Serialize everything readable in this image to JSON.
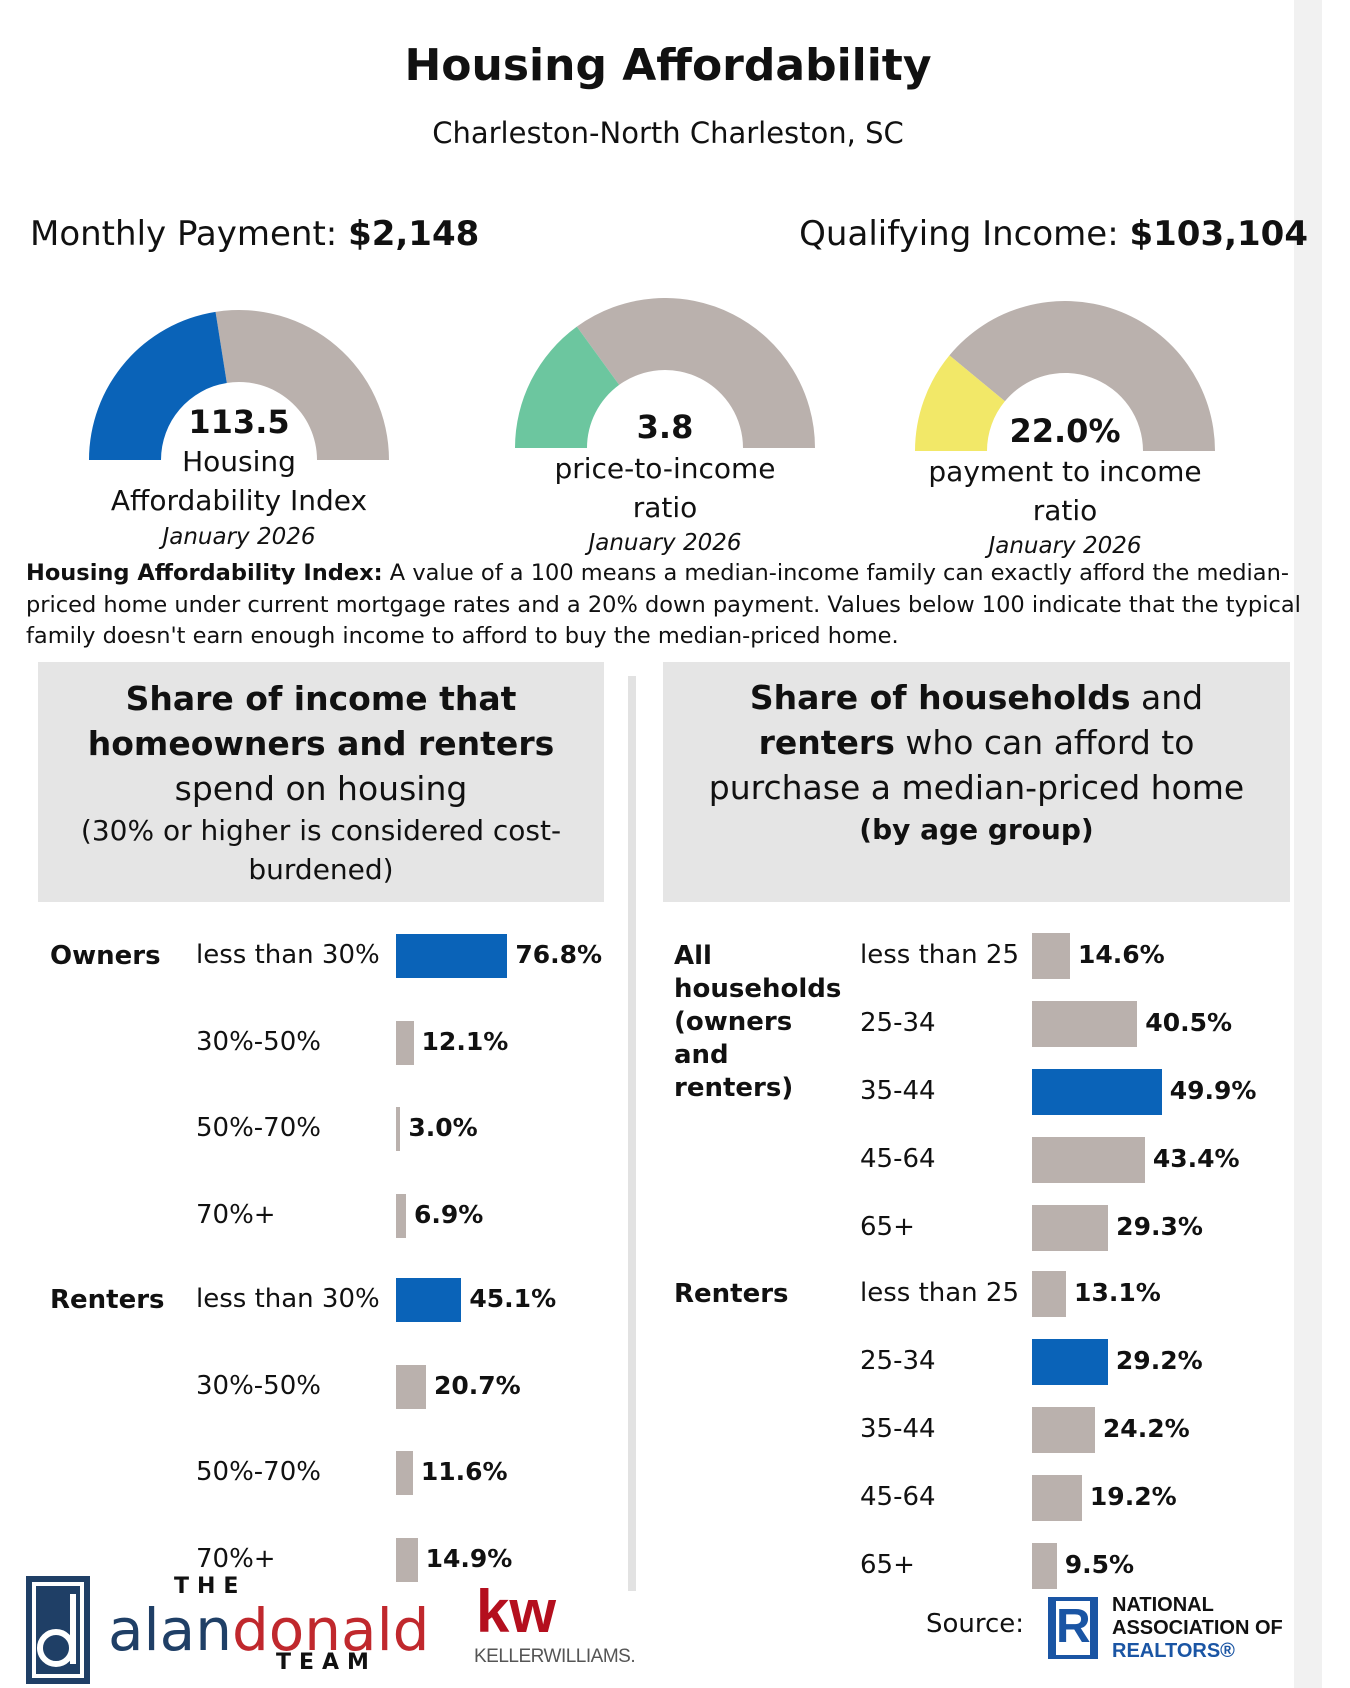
{
  "header": {
    "title": "Housing Affordability",
    "subtitle": "Charleston-North Charleston, SC"
  },
  "stats": {
    "monthly_payment_label": "Monthly Payment:",
    "monthly_payment_value": "$2,148",
    "qualifying_income_label": "Qualifying Income:",
    "qualifying_income_value": "$103,104"
  },
  "gauges": [
    {
      "value": "113.5",
      "label_line1": "Housing",
      "label_line2": "Affordability Index",
      "date": "January 2026",
      "fill_fraction": 0.45,
      "color": "#0a63b8"
    },
    {
      "value": "3.8",
      "label_line1": "price-to-income",
      "label_line2": "ratio",
      "date": "January 2026",
      "fill_fraction": 0.3,
      "color": "#6cc69f"
    },
    {
      "value": "22.0%",
      "label_line1": "payment to income",
      "label_line2": "ratio",
      "date": "January 2026",
      "fill_fraction": 0.22,
      "color": "#f2e868"
    }
  ],
  "gauge_track_color": "#bab1ad",
  "note": {
    "label": "Housing Affordability Index:",
    "text": " A value of a 100 means a median-income family can exactly afford the median-priced home under current mortgage rates and a 20% down payment. Values below 100 indicate that the typical family doesn't earn enough income to afford to buy the median-priced home."
  },
  "left_panel": {
    "title_bold1": "Share of income that",
    "title_bold2": "homeowners and renters",
    "title_normal": "spend on housing",
    "title_small": "(30% or higher is considered cost-burdened)"
  },
  "right_panel": {
    "bold1": "Share of households",
    "normal1": " and",
    "bold2": "renters",
    "normal2": " who can afford to",
    "normal3": "purchase a median-priced home",
    "small_bold": "(by age group)"
  },
  "chart_data": [
    {
      "type": "bar",
      "orientation": "horizontal",
      "groups": [
        {
          "name": "Owners",
          "categories": [
            "less than 30%",
            "30%-50%",
            "50%-70%",
            "70%+"
          ],
          "values": [
            76.8,
            12.1,
            3.0,
            6.9
          ],
          "labels": [
            "76.8%",
            "12.1%",
            "3.0%",
            "6.9%"
          ],
          "highlight_index": 0
        },
        {
          "name": "Renters",
          "categories": [
            "less than 30%",
            "30%-50%",
            "50%-70%",
            "70%+"
          ],
          "values": [
            45.1,
            20.7,
            11.6,
            14.9
          ],
          "labels": [
            "45.1%",
            "20.7%",
            "11.6%",
            "14.9%"
          ],
          "highlight_index": 0
        }
      ]
    },
    {
      "type": "bar",
      "orientation": "horizontal",
      "groups": [
        {
          "name": "All households (owners and renters)",
          "categories": [
            "less than 25",
            "25-34",
            "35-44",
            "45-64",
            "65+"
          ],
          "values": [
            14.6,
            40.5,
            49.9,
            43.4,
            29.3
          ],
          "labels": [
            "14.6%",
            "40.5%",
            "49.9%",
            "43.4%",
            "29.3%"
          ],
          "highlight_index": 2
        },
        {
          "name": "Renters",
          "categories": [
            "less than 25",
            "25-34",
            "35-44",
            "45-64",
            "65+"
          ],
          "values": [
            13.1,
            29.2,
            24.2,
            19.2,
            9.5
          ],
          "labels": [
            "13.1%",
            "29.2%",
            "24.2%",
            "19.2%",
            "9.5%"
          ],
          "highlight_index": 1
        }
      ]
    }
  ],
  "colors": {
    "highlight": "#0a63b8",
    "neutral": "#bab1ad"
  },
  "footer": {
    "logo_the": "THE",
    "logo_alan": "alan",
    "logo_donald": "donald",
    "logo_team": "TEAM",
    "kw_mark": "kw",
    "kw_name": "KELLERWILLIAMS.",
    "source_label": "Source:",
    "nar_line1": "NATIONAL",
    "nar_line2": "ASSOCIATION OF",
    "nar_line3": "REALTORS®",
    "nar_mark": "R"
  }
}
